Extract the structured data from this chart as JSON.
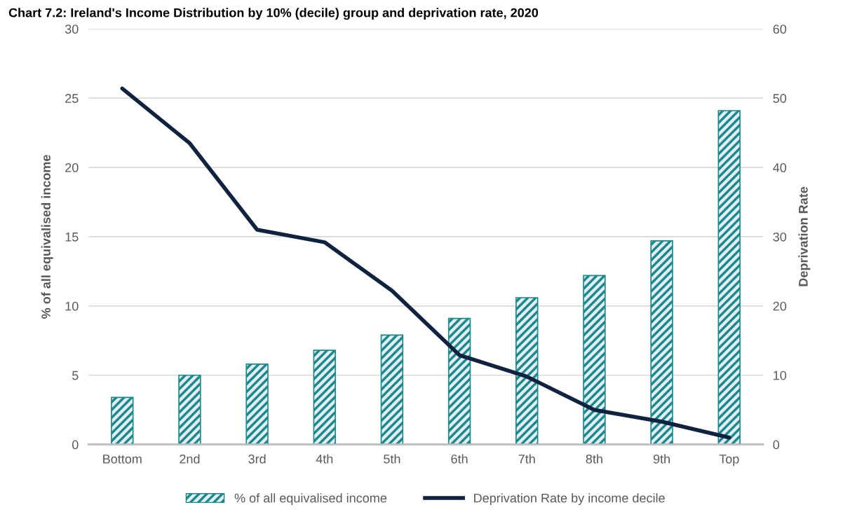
{
  "chart_data": {
    "type": "bar",
    "title": "Chart 7.2: Ireland's Income Distribution by 10% (decile) group and deprivation rate, 2020",
    "ylabel": "% of all equivalised income",
    "y2label": "Deprivation Rate",
    "categories": [
      "Bottom",
      "2nd",
      "3rd",
      "4th",
      "5th",
      "6th",
      "7th",
      "8th",
      "9th",
      "Top"
    ],
    "series": [
      {
        "name": "% of all equivalised income",
        "color": "#1a8a8a",
        "values": [
          3.4,
          5.0,
          5.8,
          6.8,
          7.9,
          9.1,
          10.6,
          12.2,
          14.7,
          24.1
        ]
      },
      {
        "name": "Deprivation Rate by income decile",
        "type": "line",
        "axis": "y2",
        "color": "#0f2240",
        "values": [
          51.4,
          43.5,
          31.0,
          29.2,
          22.2,
          12.9,
          9.8,
          5.0,
          3.3,
          1.0
        ]
      }
    ],
    "ylim": [
      0,
      30
    ],
    "yticks": [
      0,
      5,
      10,
      15,
      20,
      25,
      30
    ],
    "y2lim": [
      0,
      60
    ],
    "y2ticks": [
      0,
      10,
      20,
      30,
      40,
      50,
      60
    ],
    "grid": "y",
    "legend": "bottom"
  }
}
